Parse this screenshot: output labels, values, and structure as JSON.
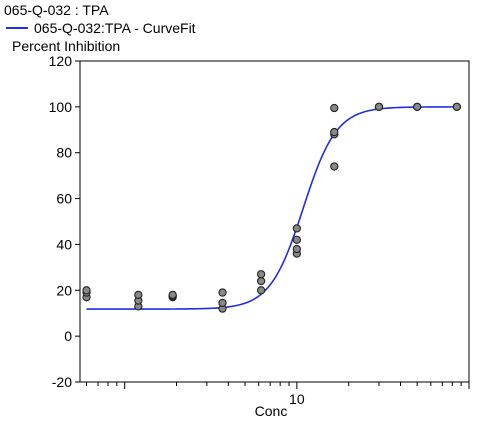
{
  "chart_data": {
    "type": "scatter",
    "title": "065-Q-032  : TPA",
    "xlabel": "Conc",
    "ylabel": "Percent Inhibition",
    "x_scale": "log",
    "xlim": [
      0.55,
      100
    ],
    "ylim": [
      -20,
      120
    ],
    "y_ticks": [
      -20,
      0,
      20,
      40,
      60,
      80,
      100,
      120
    ],
    "x_ticks": [
      10
    ],
    "grid": false,
    "legend_position": "top-left",
    "series": [
      {
        "name": "065-Q-032  : TPA",
        "kind": "points",
        "color": "#888888",
        "points": [
          {
            "x": 0.6,
            "y": 17
          },
          {
            "x": 0.6,
            "y": 19
          },
          {
            "x": 0.6,
            "y": 20
          },
          {
            "x": 1.2,
            "y": 13
          },
          {
            "x": 1.2,
            "y": 15.5
          },
          {
            "x": 1.2,
            "y": 18
          },
          {
            "x": 1.9,
            "y": 17
          },
          {
            "x": 1.9,
            "y": 17.5
          },
          {
            "x": 1.9,
            "y": 18
          },
          {
            "x": 3.7,
            "y": 12
          },
          {
            "x": 3.7,
            "y": 14.5
          },
          {
            "x": 3.7,
            "y": 19
          },
          {
            "x": 6.2,
            "y": 20
          },
          {
            "x": 6.2,
            "y": 24
          },
          {
            "x": 6.2,
            "y": 27
          },
          {
            "x": 10,
            "y": 36
          },
          {
            "x": 10,
            "y": 38
          },
          {
            "x": 10,
            "y": 42
          },
          {
            "x": 10,
            "y": 47
          },
          {
            "x": 16.5,
            "y": 74
          },
          {
            "x": 16.5,
            "y": 88
          },
          {
            "x": 16.5,
            "y": 89
          },
          {
            "x": 16.5,
            "y": 99.5
          },
          {
            "x": 30,
            "y": 100
          },
          {
            "x": 30,
            "y": 100
          },
          {
            "x": 50,
            "y": 100
          },
          {
            "x": 50,
            "y": 100
          },
          {
            "x": 85,
            "y": 100
          },
          {
            "x": 85,
            "y": 100
          }
        ]
      },
      {
        "name": "065-Q-032:TPA - CurveFit",
        "kind": "line",
        "color": "#1f2fe0",
        "fit": {
          "bottom": 11.8,
          "top": 100,
          "ec50": 10.9,
          "hill": 4.5
        }
      }
    ]
  }
}
